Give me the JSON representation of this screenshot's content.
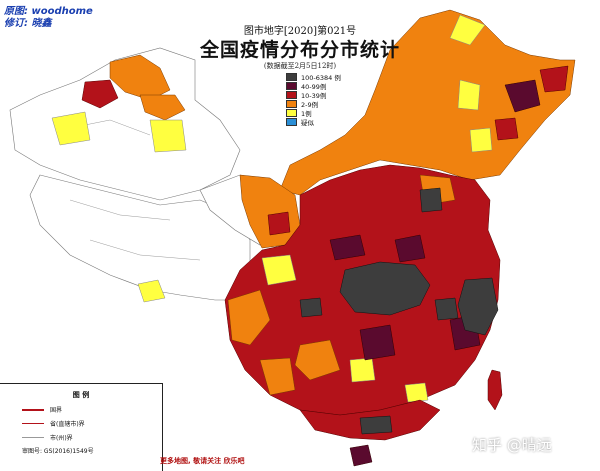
{
  "credits": {
    "source": "原图: woodhome",
    "edit": "修订: 晓鑫"
  },
  "title": {
    "top": "图市地字[2020]第021号",
    "main": "全国疫情分布分市统计",
    "sub": "(数据截至2月5日12时)"
  },
  "legend": {
    "items": [
      {
        "label": "100-6384 例",
        "color": "#3d3d3d"
      },
      {
        "label": "40-99例",
        "color": "#5a0a2e"
      },
      {
        "label": "10-39例",
        "color": "#b3121a"
      },
      {
        "label": "2-9例",
        "color": "#f0820f"
      },
      {
        "label": "1例",
        "color": "#ffff40"
      },
      {
        "label": "疑似",
        "color": "#2b8fd6"
      }
    ]
  },
  "bottom_legend": {
    "title": "图 例",
    "rows": [
      {
        "label": "国界",
        "color": "#b3121a"
      },
      {
        "label": "省(直辖市)界",
        "color": "#b3121a"
      },
      {
        "label": "市(州)界",
        "color": "#999999"
      }
    ],
    "note": "审图号: GS(2016)1549号"
  },
  "footer": "更多地图, 敬请关注 欣乐吧",
  "watermark": "知乎 @晴远",
  "colors": {
    "grey": "#3d3d3d",
    "maroon": "#5a0a2e",
    "red": "#b3121a",
    "orange": "#f0820f",
    "yellow": "#ffff40",
    "blue": "#2b8fd6",
    "none": "#ffffff"
  }
}
